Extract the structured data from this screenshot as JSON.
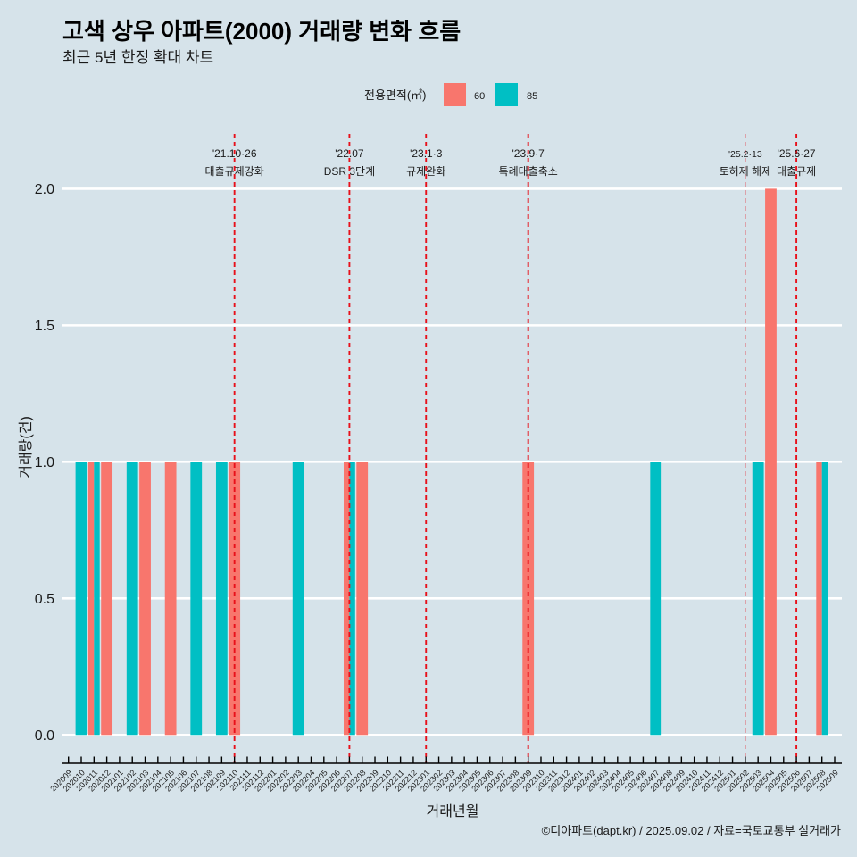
{
  "chart_data": {
    "type": "bar",
    "title": "고색 상우 아파트(2000) 거래량 변화 흐름",
    "subtitle": "최근 5년 한정 확대 차트",
    "xlabel": "거래년월",
    "ylabel": "거래량(건)",
    "caption": "©디아파트(dapt.kr) / 2025.09.02 / 자료=국토교통부 실거래가",
    "ylim": [
      0,
      2
    ],
    "yticks": [
      0,
      0.5,
      1,
      1.5,
      2
    ],
    "ytick_labels": [
      "0.0",
      "0.5",
      "1.0",
      "1.5",
      "2.0"
    ],
    "grid": "horizontal",
    "legend": {
      "title": "전용면적(㎡)",
      "position": "top"
    },
    "categories": [
      "202009",
      "202010",
      "202011",
      "202012",
      "202101",
      "202102",
      "202103",
      "202104",
      "202105",
      "202106",
      "202107",
      "202108",
      "202109",
      "202110",
      "202111",
      "202112",
      "202201",
      "202202",
      "202203",
      "202204",
      "202205",
      "202206",
      "202207",
      "202208",
      "202209",
      "202210",
      "202211",
      "202212",
      "202301",
      "202302",
      "202303",
      "202304",
      "202305",
      "202306",
      "202307",
      "202308",
      "202309",
      "202310",
      "202311",
      "202312",
      "202401",
      "202402",
      "202403",
      "202404",
      "202405",
      "202406",
      "202407",
      "202408",
      "202409",
      "202410",
      "202411",
      "202412",
      "202501",
      "202502",
      "202503",
      "202504",
      "202505",
      "202506",
      "202507",
      "202508",
      "202509"
    ],
    "series": [
      {
        "name": "60",
        "color": "#F8766D",
        "points": [
          {
            "x": "202011",
            "y": 1
          },
          {
            "x": "202012",
            "y": 1
          },
          {
            "x": "202103",
            "y": 1
          },
          {
            "x": "202105",
            "y": 1
          },
          {
            "x": "202110",
            "y": 1
          },
          {
            "x": "202207",
            "y": 1
          },
          {
            "x": "202208",
            "y": 1
          },
          {
            "x": "202309",
            "y": 1
          },
          {
            "x": "202504",
            "y": 2
          },
          {
            "x": "202508",
            "y": 1
          }
        ]
      },
      {
        "name": "85",
        "color": "#00BFC4",
        "points": [
          {
            "x": "202010",
            "y": 1
          },
          {
            "x": "202011",
            "y": 1
          },
          {
            "x": "202102",
            "y": 1
          },
          {
            "x": "202107",
            "y": 1
          },
          {
            "x": "202109",
            "y": 1
          },
          {
            "x": "202203",
            "y": 1
          },
          {
            "x": "202207",
            "y": 1
          },
          {
            "x": "202407",
            "y": 1
          },
          {
            "x": "202503",
            "y": 1
          },
          {
            "x": "202508",
            "y": 1
          }
        ]
      }
    ],
    "event_color": "#E8101A",
    "events": [
      {
        "x": "202110",
        "date": "'21.10·26",
        "label": "대출규제강화",
        "minor": false
      },
      {
        "x": "202207",
        "date": "'22.07",
        "label": "DSR 3단계",
        "minor": false
      },
      {
        "x": "202301",
        "date": "'23.1·3",
        "label": "규제완화",
        "minor": false
      },
      {
        "x": "202309",
        "date": "'23.9·7",
        "label": "특례대출축소",
        "minor": false
      },
      {
        "x": "202502",
        "date": "'25.2·13",
        "label": "토허제 해제",
        "minor": true
      },
      {
        "x": "202506",
        "date": "'25.6·27",
        "label": "대출규제",
        "minor": false
      }
    ]
  }
}
